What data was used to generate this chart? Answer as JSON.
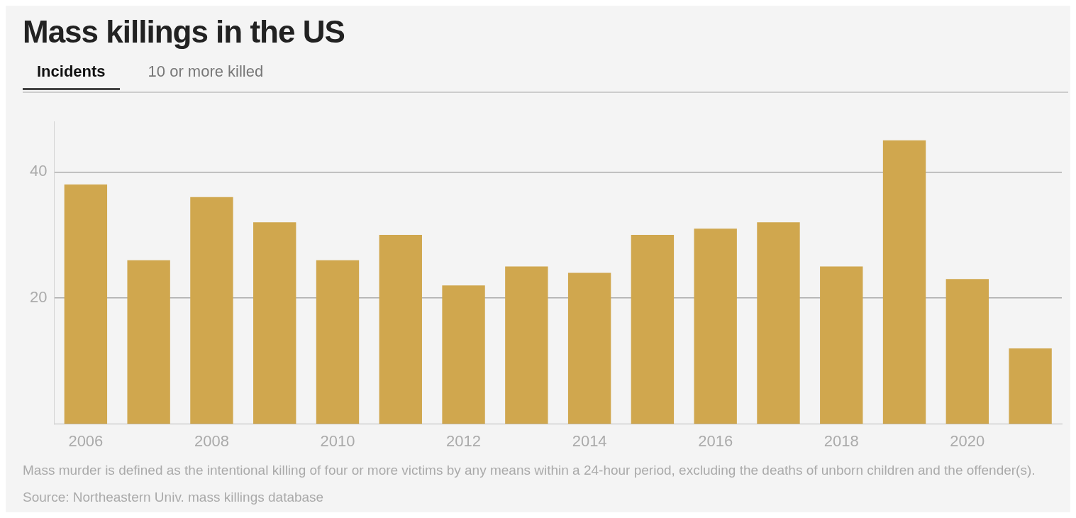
{
  "chart_data": {
    "type": "bar",
    "title": "Mass killings in the US",
    "categories": [
      "2006",
      null,
      "2008",
      null,
      "2010",
      null,
      "2012",
      null,
      "2014",
      null,
      "2016",
      null,
      "2018",
      null,
      "2020",
      null
    ],
    "values": [
      38,
      26,
      36,
      32,
      26,
      30,
      22,
      25,
      24,
      30,
      31,
      32,
      25,
      45,
      23,
      12
    ],
    "color": "#d0a74e",
    "ylim": [
      0,
      48
    ],
    "yticks": [
      20,
      40
    ],
    "grid": "y",
    "legend": false,
    "annotations": [
      "Incidents",
      "10 or more killed",
      "Mass murder is defined as the intentional killing of four or more victims by any means within a 24-hour period, excluding the deaths of unborn children and the offender(s).",
      "Source: Northeastern Univ. mass killings database"
    ]
  }
}
